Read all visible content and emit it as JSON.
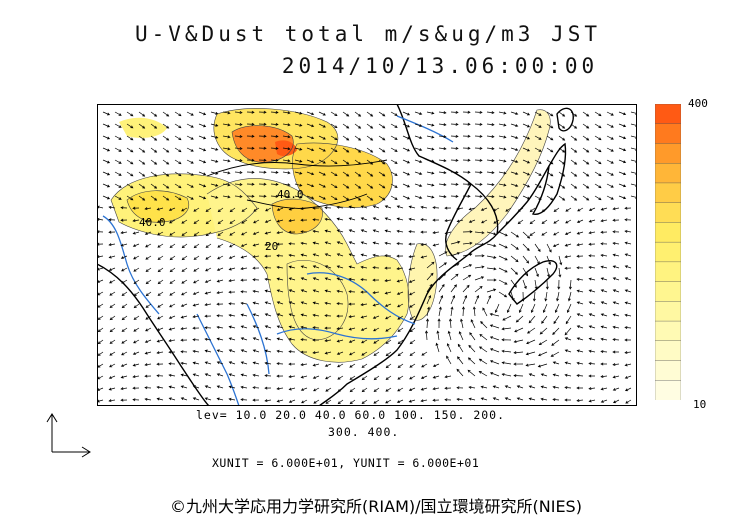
{
  "title": {
    "line1": "U-V&Dust total m/s&ug/m3 JST",
    "line2": "2014/10/13.06:00:00"
  },
  "colorbar": {
    "max_label": "400",
    "min_label": "10",
    "colors": [
      "#ff5a14",
      "#ff7a1e",
      "#ff9a2a",
      "#ffb638",
      "#ffcc46",
      "#ffdd55",
      "#ffeb62",
      "#fff070",
      "#fff380",
      "#fff690",
      "#fff8a2",
      "#fffab4",
      "#fffbc5",
      "#fffcd4",
      "#fffde2"
    ]
  },
  "levels": {
    "line1": "lev= 10.0 20.0 40.0 60.0 100. 150. 200.",
    "line2": "300. 400."
  },
  "units": "XUNIT = 6.000E+01, YUNIT = 6.000E+01",
  "contour_labels": [
    "40.0",
    "40.0",
    "20"
  ],
  "copyright": "©九州大学応用力学研究所(RIAM)/国立環境研究所(NIES)",
  "icons": {
    "ref_arrow": "reference-vector-icon"
  }
}
